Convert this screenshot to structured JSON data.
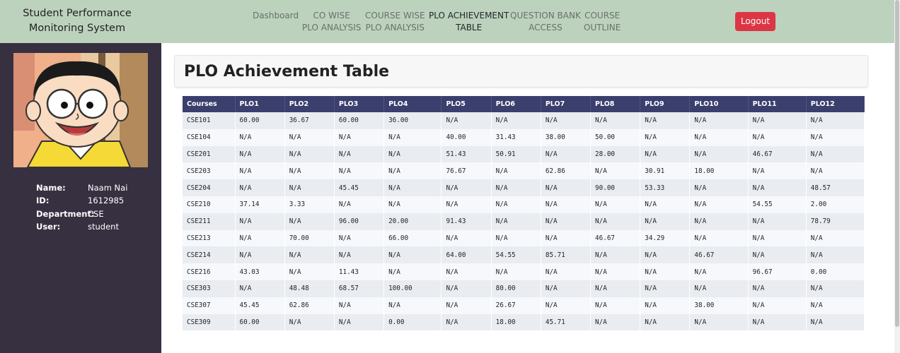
{
  "brand": {
    "line1": "Student Performance",
    "line2": "Monitoring System"
  },
  "nav": [
    {
      "line1": "Dashboard",
      "line2": ""
    },
    {
      "line1": "CO WISE",
      "line2": "PLO ANALYSIS"
    },
    {
      "line1": "COURSE WISE",
      "line2": "PLO ANALYSIS"
    },
    {
      "line1": "PLO ACHIEVEMENT",
      "line2": "TABLE"
    },
    {
      "line1": "QUESTION BANK",
      "line2": "ACCESS"
    },
    {
      "line1": "COURSE",
      "line2": "OUTLINE"
    }
  ],
  "active_nav": "PLO ACHIEVEMENT TABLE",
  "logout_label": "Logout",
  "profile": {
    "rows": [
      {
        "key": "Name:",
        "value": "Naam Nai"
      },
      {
        "key": "ID:",
        "value": "1612985"
      },
      {
        "key": "Department:",
        "value": "CSE"
      },
      {
        "key": "User:",
        "value": "student"
      }
    ]
  },
  "page_title": "PLO Achievement Table",
  "table": {
    "headers": [
      "Courses",
      "PLO1",
      "PLO2",
      "PLO3",
      "PLO4",
      "PLO5",
      "PLO6",
      "PLO7",
      "PLO8",
      "PLO9",
      "PLO10",
      "PLO11",
      "PLO12"
    ],
    "rows": [
      [
        "CSE101",
        "60.00",
        "36.67",
        "60.00",
        "36.00",
        "N/A",
        "N/A",
        "N/A",
        "N/A",
        "N/A",
        "N/A",
        "N/A",
        "N/A"
      ],
      [
        "CSE104",
        "N/A",
        "N/A",
        "N/A",
        "N/A",
        "40.00",
        "31.43",
        "38.00",
        "50.00",
        "N/A",
        "N/A",
        "N/A",
        "N/A"
      ],
      [
        "CSE201",
        "N/A",
        "N/A",
        "N/A",
        "N/A",
        "51.43",
        "50.91",
        "N/A",
        "28.00",
        "N/A",
        "N/A",
        "46.67",
        "N/A"
      ],
      [
        "CSE203",
        "N/A",
        "N/A",
        "N/A",
        "N/A",
        "76.67",
        "N/A",
        "62.86",
        "N/A",
        "30.91",
        "18.00",
        "N/A",
        "N/A"
      ],
      [
        "CSE204",
        "N/A",
        "N/A",
        "45.45",
        "N/A",
        "N/A",
        "N/A",
        "N/A",
        "90.00",
        "53.33",
        "N/A",
        "N/A",
        "48.57"
      ],
      [
        "CSE210",
        "37.14",
        "3.33",
        "N/A",
        "N/A",
        "N/A",
        "N/A",
        "N/A",
        "N/A",
        "N/A",
        "N/A",
        "54.55",
        "2.00"
      ],
      [
        "CSE211",
        "N/A",
        "N/A",
        "96.00",
        "20.00",
        "91.43",
        "N/A",
        "N/A",
        "N/A",
        "N/A",
        "N/A",
        "N/A",
        "78.79"
      ],
      [
        "CSE213",
        "N/A",
        "70.00",
        "N/A",
        "66.00",
        "N/A",
        "N/A",
        "N/A",
        "46.67",
        "34.29",
        "N/A",
        "N/A",
        "N/A"
      ],
      [
        "CSE214",
        "N/A",
        "N/A",
        "N/A",
        "N/A",
        "64.00",
        "54.55",
        "85.71",
        "N/A",
        "N/A",
        "46.67",
        "N/A",
        "N/A"
      ],
      [
        "CSE216",
        "43.03",
        "N/A",
        "11.43",
        "N/A",
        "N/A",
        "N/A",
        "N/A",
        "N/A",
        "N/A",
        "N/A",
        "96.67",
        "0.00"
      ],
      [
        "CSE303",
        "N/A",
        "48.48",
        "68.57",
        "100.00",
        "N/A",
        "80.00",
        "N/A",
        "N/A",
        "N/A",
        "N/A",
        "N/A",
        "N/A"
      ],
      [
        "CSE307",
        "45.45",
        "62.86",
        "N/A",
        "N/A",
        "N/A",
        "26.67",
        "N/A",
        "N/A",
        "N/A",
        "38.00",
        "N/A",
        "N/A"
      ],
      [
        "CSE309",
        "60.00",
        "N/A",
        "N/A",
        "0.00",
        "N/A",
        "18.00",
        "45.71",
        "N/A",
        "N/A",
        "N/A",
        "N/A",
        "N/A"
      ]
    ]
  },
  "colors": {
    "navbar_bg": "#bcd2bd",
    "sidebar_bg": "#373041",
    "table_header_bg": "#3a3f6e",
    "logout_bg": "#dc3545"
  }
}
